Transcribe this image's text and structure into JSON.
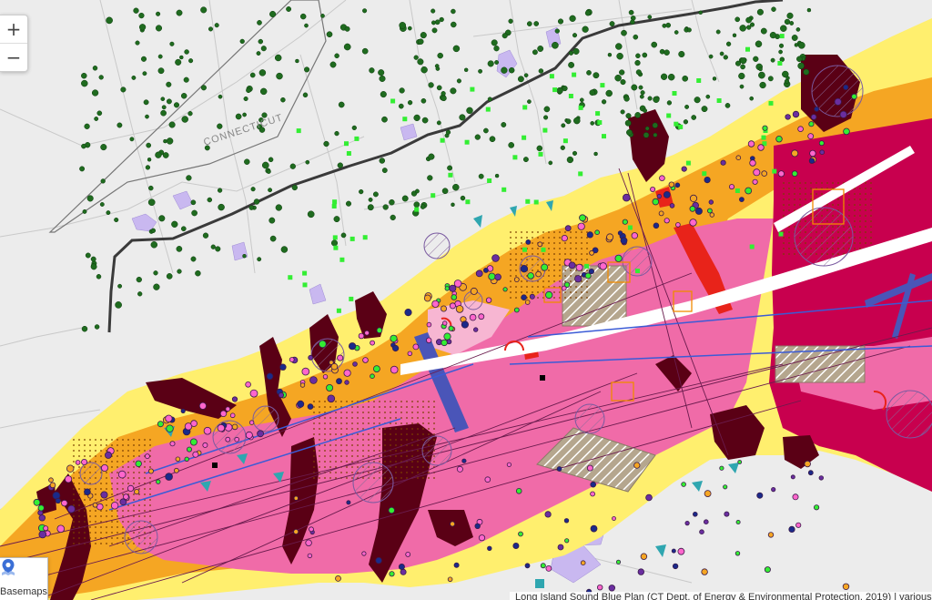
{
  "map": {
    "region_label": "CONNECTICUT",
    "colors": {
      "background": "#e9e9e9",
      "land_light": "#f2f2f2",
      "town_borders": "#c8c8c8",
      "state_boundary": "#555555",
      "highway": "#3a3a3a",
      "water_lavender": "#c9b8f0",
      "yellow": "#ffef6e",
      "orange": "#f5a623",
      "pink": "#f06ba8",
      "crimson": "#c8004e",
      "maroon": "#5a0015",
      "red": "#e8231a",
      "blue_purple": "#4a55b8",
      "teal": "#2fa6b0",
      "green_points": "#1f6b1f",
      "bright_green": "#33ee33",
      "magenta_points": "#ff66cc",
      "hatch_gray": "#b5a68e"
    }
  },
  "controls": {
    "zoom_in_label": "+",
    "zoom_out_label": "−",
    "basemaps_label": "Basemaps",
    "basemaps_icon": "map-pin-icon"
  },
  "attribution": {
    "text": "Long Island Sound Blue Plan (CT Dept. of Energy & Environmental Protection, 2019) | various L"
  }
}
